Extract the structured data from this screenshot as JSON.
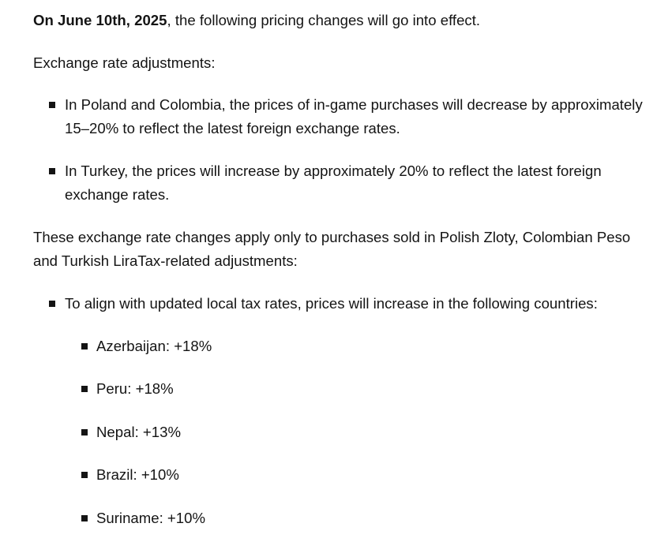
{
  "intro": {
    "date": "On June 10th, 2025",
    "rest": ", the following pricing changes will go into effect."
  },
  "exchange_heading": "Exchange rate adjustments:",
  "exchange_items": [
    "In Poland and Colombia, the prices of in-game purchases will decrease by approximately 15–20% to reflect the latest foreign exchange rates.",
    "In Turkey, the prices will increase by approximately 20% to reflect the latest foreign exchange rates."
  ],
  "exchange_note": "These exchange rate changes apply only to purchases sold in Polish Zloty, Colombian Peso and Turkish LiraTax-related adjustments:",
  "tax_item": "To align with updated local tax rates, prices will increase in the following countries:",
  "countries": [
    "Azerbaijan: +18%",
    "Peru: +18%",
    "Nepal: +13%",
    "Brazil: +10%",
    "Suriname: +10%"
  ]
}
